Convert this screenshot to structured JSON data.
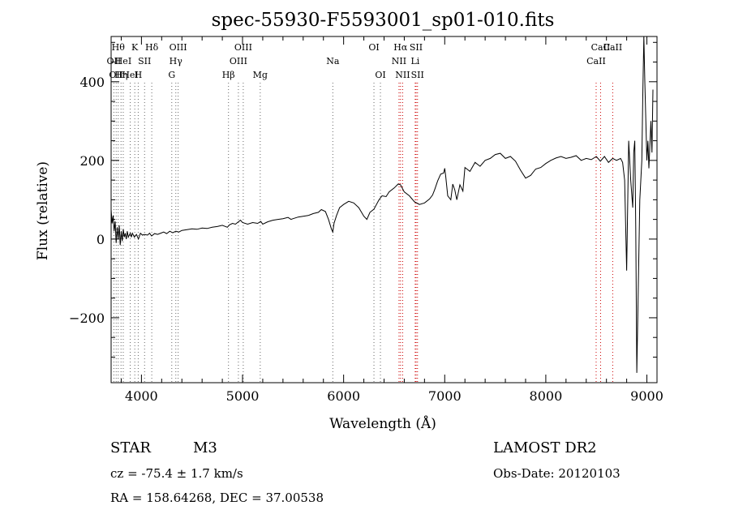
{
  "chart_data": {
    "type": "line",
    "title": "spec-55930-F5593001_sp01-010.fits",
    "xlabel": "Wavelength (Å)",
    "ylabel": "Flux (relative)",
    "xlim": [
      3700,
      9100
    ],
    "ylim": [
      -365,
      515
    ],
    "x_ticks": [
      4000,
      5000,
      6000,
      7000,
      8000,
      9000
    ],
    "y_ticks": [
      -200,
      0,
      200,
      400
    ],
    "grid": false,
    "series": [
      {
        "points": [
          [
            3700,
            75
          ],
          [
            3710,
            40
          ],
          [
            3720,
            60
          ],
          [
            3730,
            20
          ],
          [
            3740,
            45
          ],
          [
            3750,
            -10
          ],
          [
            3760,
            30
          ],
          [
            3770,
            0
          ],
          [
            3780,
            35
          ],
          [
            3790,
            -15
          ],
          [
            3800,
            20
          ],
          [
            3810,
            -5
          ],
          [
            3820,
            25
          ],
          [
            3830,
            5
          ],
          [
            3840,
            15
          ],
          [
            3850,
            0
          ],
          [
            3860,
            20
          ],
          [
            3870,
            5
          ],
          [
            3880,
            10
          ],
          [
            3890,
            15
          ],
          [
            3900,
            5
          ],
          [
            3910,
            15
          ],
          [
            3930,
            5
          ],
          [
            3950,
            12
          ],
          [
            3970,
            0
          ],
          [
            3990,
            15
          ],
          [
            4010,
            10
          ],
          [
            4030,
            12
          ],
          [
            4060,
            10
          ],
          [
            4080,
            15
          ],
          [
            4100,
            8
          ],
          [
            4130,
            14
          ],
          [
            4160,
            12
          ],
          [
            4190,
            15
          ],
          [
            4220,
            18
          ],
          [
            4250,
            14
          ],
          [
            4280,
            20
          ],
          [
            4310,
            16
          ],
          [
            4340,
            20
          ],
          [
            4370,
            18
          ],
          [
            4400,
            22
          ],
          [
            4450,
            24
          ],
          [
            4500,
            26
          ],
          [
            4550,
            25
          ],
          [
            4600,
            28
          ],
          [
            4650,
            27
          ],
          [
            4700,
            30
          ],
          [
            4750,
            32
          ],
          [
            4800,
            35
          ],
          [
            4850,
            30
          ],
          [
            4870,
            36
          ],
          [
            4900,
            40
          ],
          [
            4930,
            38
          ],
          [
            4960,
            44
          ],
          [
            4980,
            48
          ],
          [
            5000,
            42
          ],
          [
            5050,
            38
          ],
          [
            5100,
            42
          ],
          [
            5150,
            40
          ],
          [
            5180,
            45
          ],
          [
            5200,
            38
          ],
          [
            5250,
            44
          ],
          [
            5300,
            48
          ],
          [
            5350,
            50
          ],
          [
            5400,
            52
          ],
          [
            5450,
            55
          ],
          [
            5480,
            50
          ],
          [
            5500,
            52
          ],
          [
            5550,
            56
          ],
          [
            5600,
            58
          ],
          [
            5650,
            60
          ],
          [
            5700,
            65
          ],
          [
            5750,
            68
          ],
          [
            5780,
            75
          ],
          [
            5820,
            70
          ],
          [
            5850,
            50
          ],
          [
            5880,
            25
          ],
          [
            5893,
            18
          ],
          [
            5905,
            40
          ],
          [
            5930,
            60
          ],
          [
            5960,
            80
          ],
          [
            6000,
            88
          ],
          [
            6050,
            96
          ],
          [
            6100,
            92
          ],
          [
            6150,
            80
          ],
          [
            6200,
            58
          ],
          [
            6230,
            50
          ],
          [
            6260,
            68
          ],
          [
            6300,
            76
          ],
          [
            6350,
            100
          ],
          [
            6380,
            110
          ],
          [
            6420,
            108
          ],
          [
            6450,
            120
          ],
          [
            6500,
            130
          ],
          [
            6540,
            140
          ],
          [
            6563,
            138
          ],
          [
            6600,
            120
          ],
          [
            6650,
            110
          ],
          [
            6700,
            95
          ],
          [
            6750,
            88
          ],
          [
            6800,
            92
          ],
          [
            6850,
            102
          ],
          [
            6880,
            112
          ],
          [
            6900,
            125
          ],
          [
            6930,
            148
          ],
          [
            6960,
            165
          ],
          [
            6990,
            168
          ],
          [
            7000,
            180
          ],
          [
            7010,
            160
          ],
          [
            7030,
            110
          ],
          [
            7060,
            100
          ],
          [
            7080,
            140
          ],
          [
            7100,
            125
          ],
          [
            7120,
            100
          ],
          [
            7150,
            138
          ],
          [
            7180,
            122
          ],
          [
            7200,
            182
          ],
          [
            7250,
            172
          ],
          [
            7300,
            195
          ],
          [
            7350,
            185
          ],
          [
            7400,
            200
          ],
          [
            7450,
            205
          ],
          [
            7500,
            215
          ],
          [
            7550,
            218
          ],
          [
            7600,
            205
          ],
          [
            7650,
            210
          ],
          [
            7700,
            198
          ],
          [
            7750,
            175
          ],
          [
            7800,
            155
          ],
          [
            7850,
            162
          ],
          [
            7900,
            178
          ],
          [
            7950,
            182
          ],
          [
            8000,
            192
          ],
          [
            8050,
            200
          ],
          [
            8100,
            206
          ],
          [
            8150,
            210
          ],
          [
            8200,
            205
          ],
          [
            8250,
            208
          ],
          [
            8300,
            212
          ],
          [
            8350,
            200
          ],
          [
            8400,
            205
          ],
          [
            8450,
            202
          ],
          [
            8500,
            210
          ],
          [
            8540,
            198
          ],
          [
            8580,
            210
          ],
          [
            8620,
            195
          ],
          [
            8662,
            205
          ],
          [
            8700,
            200
          ],
          [
            8740,
            205
          ],
          [
            8760,
            195
          ],
          [
            8780,
            150
          ],
          [
            8800,
            -80
          ],
          [
            8820,
            250
          ],
          [
            8840,
            150
          ],
          [
            8860,
            80
          ],
          [
            8870,
            220
          ],
          [
            8880,
            250
          ],
          [
            8890,
            30
          ],
          [
            8900,
            -340
          ],
          [
            8910,
            -200
          ],
          [
            8930,
            100
          ],
          [
            8950,
            200
          ],
          [
            8960,
            380
          ],
          [
            8970,
            520
          ],
          [
            8980,
            400
          ],
          [
            9000,
            200
          ],
          [
            9010,
            250
          ],
          [
            9020,
            180
          ],
          [
            9040,
            300
          ],
          [
            9050,
            220
          ],
          [
            9060,
            380
          ]
        ]
      }
    ],
    "lines": [
      {
        "x": 3727,
        "label": "OII",
        "row": 1
      },
      {
        "x": 3750,
        "label": "OII",
        "row": 2
      },
      {
        "x": 3770,
        "label": "Hθ",
        "row": 0
      },
      {
        "x": 3798,
        "label": "Hη",
        "row": 2
      },
      {
        "x": 3820,
        "label": "HeI",
        "row": 1
      },
      {
        "x": 3889,
        "label": "HeI",
        "row": 2
      },
      {
        "x": 3934,
        "label": "K",
        "row": 0
      },
      {
        "x": 3968,
        "label": "H",
        "row": 2
      },
      {
        "x": 4031,
        "label": "SII",
        "row": 1
      },
      {
        "x": 4102,
        "label": "Hδ",
        "row": 0
      },
      {
        "x": 4300,
        "label": "G",
        "row": 2
      },
      {
        "x": 4340,
        "label": "Hγ",
        "row": 1
      },
      {
        "x": 4363,
        "label": "OIII",
        "row": 0
      },
      {
        "x": 4861,
        "label": "Hβ",
        "row": 2
      },
      {
        "x": 4959,
        "label": "OIII",
        "row": 1
      },
      {
        "x": 5007,
        "label": "OIII",
        "row": 0
      },
      {
        "x": 5175,
        "label": "Mg",
        "row": 2
      },
      {
        "x": 5893,
        "label": "Na",
        "row": 1
      },
      {
        "x": 6300,
        "label": "OI",
        "row": 0
      },
      {
        "x": 6364,
        "label": "OI",
        "row": 2
      },
      {
        "x": 6548,
        "label": "NII",
        "row": 1
      },
      {
        "x": 6563,
        "label": "Hα",
        "row": 0
      },
      {
        "x": 6584,
        "label": "NII",
        "row": 2
      },
      {
        "x": 6708,
        "label": "Li",
        "row": 1
      },
      {
        "x": 6717,
        "label": "SII",
        "row": 0
      },
      {
        "x": 6731,
        "label": "SII",
        "row": 2
      },
      {
        "x": 8498,
        "label": "CaII",
        "row": 1
      },
      {
        "x": 8542,
        "label": "CaII",
        "row": 0
      },
      {
        "x": 8662,
        "label": "CaII",
        "row": 0
      }
    ],
    "line_colors": {
      "emission": "#cc0000",
      "absorption": "#666666"
    }
  },
  "footer": {
    "object_type": "STAR",
    "subclass": "M3",
    "redshift": "cz = -75.4 ± 1.7 km/s",
    "coords": "RA = 158.64268, DEC =  37.00538",
    "survey": "LAMOST DR2",
    "obs_date": "Obs-Date: 20120103"
  }
}
